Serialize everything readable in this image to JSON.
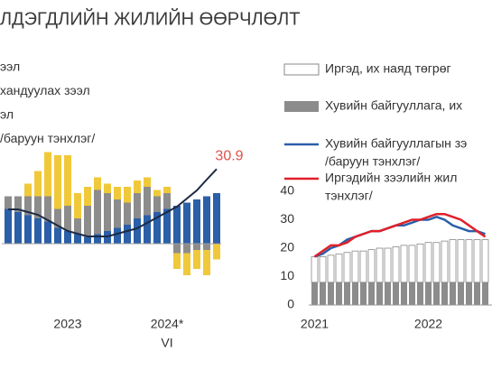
{
  "chart_data": [
    {
      "type": "stacked_bar_line",
      "title": "ЛДЭГДЛИЙН ЖИЛИЙН ӨӨРЧЛӨЛТ",
      "categories": [
        null,
        null,
        null,
        null,
        null,
        null,
        "2023",
        null,
        null,
        null,
        null,
        null,
        null,
        null,
        null,
        null,
        "2024*",
        null,
        null,
        null,
        null,
        null
      ],
      "sublabels": [
        null,
        null,
        null,
        null,
        null,
        null,
        null,
        null,
        null,
        null,
        null,
        null,
        null,
        null,
        null,
        null,
        "VI",
        null,
        null,
        null,
        null,
        null
      ],
      "ylim": [
        -20,
        40
      ],
      "y2lim": [
        -20,
        50
      ],
      "series": [
        {
          "name": "ээл",
          "color": "#2b5fa8",
          "values": [
            11,
            10,
            9,
            8,
            7,
            5,
            4,
            3,
            2,
            3,
            4,
            5,
            6,
            8,
            9,
            10,
            11,
            12,
            13,
            14,
            15,
            16
          ]
        },
        {
          "name": "хандуулах зээл",
          "color": "#8c8c8c",
          "values": [
            4,
            5,
            6,
            7,
            8,
            6,
            8,
            5,
            10,
            14,
            12,
            9,
            7,
            8,
            9,
            5,
            5,
            -3,
            -3,
            -2,
            -2,
            0
          ]
        },
        {
          "name": "эл",
          "color": "#f0c93a",
          "values": [
            0,
            0,
            4,
            8,
            14,
            17,
            16,
            8,
            6,
            4,
            3,
            4,
            5,
            4,
            3,
            2,
            2,
            -5,
            -7,
            -6,
            -8,
            -5
          ]
        },
        {
          "name": "/баруун тэнхлэг/",
          "color": "#1d2a44",
          "axis": "y2",
          "kind": "line",
          "values": [
            16,
            16,
            15,
            14,
            12,
            10,
            8,
            7,
            6,
            6,
            6,
            7,
            8,
            9,
            11,
            13,
            15,
            17,
            20,
            23,
            27,
            30.9
          ]
        }
      ],
      "label_color": "#e0504a"
    },
    {
      "type": "stacked_bar_line",
      "categories": [
        "2021",
        null,
        null,
        null,
        null,
        null,
        null,
        null,
        null,
        null,
        null,
        null,
        null,
        null,
        "2022",
        null,
        null,
        null,
        null,
        null,
        null,
        null
      ],
      "ylim": [
        0,
        40
      ],
      "yticks": [
        0,
        10,
        20,
        30,
        40
      ],
      "series": [
        {
          "name": [
            "Хувийн байгууллага, их"
          ],
          "color": "#8c8c8c",
          "values": [
            8,
            8,
            8,
            8,
            8,
            8,
            8,
            8,
            8,
            8,
            8,
            8,
            8,
            8,
            8,
            8,
            8,
            8,
            8,
            8,
            8,
            8
          ]
        },
        {
          "name": [
            "Иргэд, их наяд төгрөг"
          ],
          "color": "#ffffff",
          "values": [
            9,
            9,
            9.5,
            10,
            10.5,
            11,
            11,
            11.5,
            12,
            12,
            12.5,
            13,
            13,
            13.5,
            14,
            14,
            14.5,
            15,
            15,
            15,
            15,
            15
          ]
        },
        {
          "name": [
            "Хувийн байгууллагын зэ",
            "/баруун тэнхлэг/"
          ],
          "color": "#2b5fa8",
          "kind": "line",
          "values": [
            17,
            18,
            20,
            21,
            23,
            24,
            25,
            26,
            26,
            27,
            28,
            28,
            29,
            30,
            30,
            31,
            30,
            28,
            27,
            26,
            26,
            25
          ]
        },
        {
          "name": [
            "Иргэдийн зээлийн жил",
            "тэнхлэг/"
          ],
          "color": "#e0202a",
          "kind": "line",
          "values": [
            17,
            19,
            21,
            21,
            22,
            24,
            25,
            26,
            26,
            27,
            28,
            29,
            30,
            30,
            31,
            32,
            32,
            31,
            30,
            28,
            26,
            24
          ]
        }
      ]
    }
  ]
}
